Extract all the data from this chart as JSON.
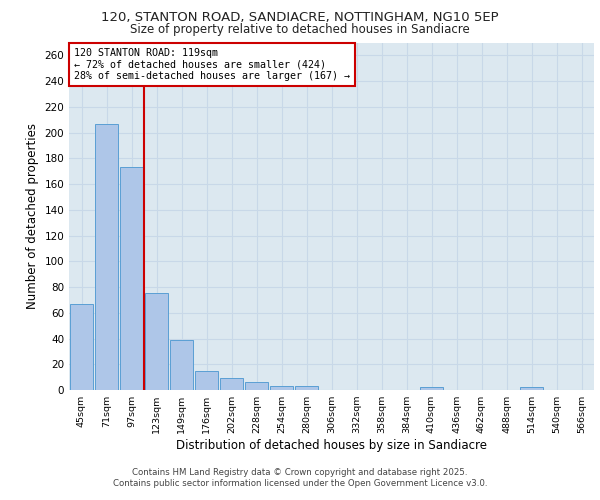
{
  "title1": "120, STANTON ROAD, SANDIACRE, NOTTINGHAM, NG10 5EP",
  "title2": "Size of property relative to detached houses in Sandiacre",
  "xlabel": "Distribution of detached houses by size in Sandiacre",
  "ylabel": "Number of detached properties",
  "footnote1": "Contains HM Land Registry data © Crown copyright and database right 2025.",
  "footnote2": "Contains public sector information licensed under the Open Government Licence v3.0.",
  "annotation_line1": "120 STANTON ROAD: 119sqm",
  "annotation_line2": "← 72% of detached houses are smaller (424)",
  "annotation_line3": "28% of semi-detached houses are larger (167) →",
  "bar_color": "#aec6e8",
  "bar_edge_color": "#5a9fd4",
  "grid_color": "#c8d8e8",
  "background_color": "#dce8f0",
  "red_line_color": "#cc0000",
  "bin_labels": [
    "45sqm",
    "71sqm",
    "97sqm",
    "123sqm",
    "149sqm",
    "176sqm",
    "202sqm",
    "228sqm",
    "254sqm",
    "280sqm",
    "306sqm",
    "332sqm",
    "358sqm",
    "384sqm",
    "410sqm",
    "436sqm",
    "462sqm",
    "488sqm",
    "514sqm",
    "540sqm",
    "566sqm"
  ],
  "bin_values": [
    67,
    207,
    173,
    75,
    39,
    15,
    9,
    6,
    3,
    3,
    0,
    0,
    0,
    0,
    2,
    0,
    0,
    0,
    2,
    0,
    0
  ],
  "ylim": [
    0,
    270
  ],
  "yticks": [
    0,
    20,
    40,
    60,
    80,
    100,
    120,
    140,
    160,
    180,
    200,
    220,
    240,
    260
  ]
}
